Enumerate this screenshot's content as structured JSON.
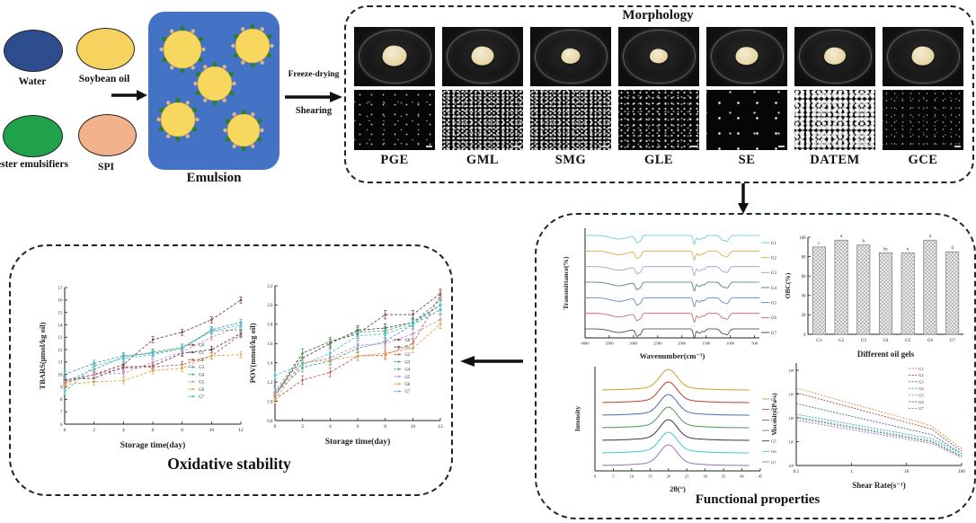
{
  "flow": {
    "ingredients": [
      {
        "label": "Water",
        "color": "#2e4d8e"
      },
      {
        "label": "Soybean oil",
        "color": "#f6d35f"
      },
      {
        "label": "ester emulsifiers",
        "color": "#1fa24a"
      },
      {
        "label": "SPI",
        "color": "#f2b38c"
      }
    ],
    "emulsion_label": "Emulsion",
    "emulsion_box_color": "#4472c4",
    "droplet_color": "#f8d75e",
    "process": {
      "top": "Freeze-drying",
      "bottom": "Shearing"
    }
  },
  "morphology": {
    "title": "Morphology",
    "samples": [
      {
        "label": "PGE",
        "micro": "sparse"
      },
      {
        "label": "GML",
        "micro": "dense"
      },
      {
        "label": "SMG",
        "micro": "dense"
      },
      {
        "label": "GLE",
        "micro": "medium"
      },
      {
        "label": "SE",
        "micro": "dots"
      },
      {
        "label": "DATEM",
        "micro": "coarse"
      },
      {
        "label": "GCE",
        "micro": "fine"
      }
    ]
  },
  "oxidative": {
    "title": "Oxidative stability"
  },
  "functional": {
    "title": "Functional properties"
  },
  "chart_data": [
    {
      "id": "tbars",
      "type": "line",
      "xlabel": "Storage time(day)",
      "ylabel": "TBARS(μmol/kg oil)",
      "x": [
        0,
        2,
        4,
        6,
        8,
        10,
        12
      ],
      "ylim": [
        6,
        17
      ],
      "yticks": [
        "6",
        "7",
        "8",
        "9",
        "10",
        "11",
        "12",
        "13",
        "14",
        "15",
        "16",
        "17"
      ],
      "err": 0.25,
      "legend_pos": {
        "x": 0.7,
        "y": 0.42
      },
      "series": [
        {
          "name": "G0",
          "color": "#7a3b44",
          "values": [
            9.5,
            10.0,
            10.8,
            12.8,
            13.4,
            14.4,
            16.0
          ]
        },
        {
          "name": "G1",
          "color": "#4a4a4a",
          "values": [
            9.6,
            9.7,
            10.6,
            10.7,
            11.7,
            12.0,
            13.3
          ]
        },
        {
          "name": "G2",
          "color": "#c65455",
          "values": [
            9.3,
            10.0,
            10.5,
            10.6,
            10.8,
            11.5,
            13.2
          ]
        },
        {
          "name": "G3",
          "color": "#3f9db5",
          "values": [
            10.0,
            10.9,
            11.5,
            11.7,
            12.1,
            13.6,
            14.2
          ]
        },
        {
          "name": "G4",
          "color": "#55a868",
          "values": [
            9.4,
            10.4,
            11.4,
            11.8,
            12.2,
            13.5,
            13.6
          ]
        },
        {
          "name": "G5",
          "color": "#c48fc4",
          "values": [
            9.4,
            10.0,
            10.1,
            11.0,
            11.8,
            13.0,
            13.9
          ]
        },
        {
          "name": "G6",
          "color": "#e0a33e",
          "values": [
            9.2,
            9.4,
            9.5,
            10.3,
            10.5,
            11.5,
            11.6
          ]
        },
        {
          "name": "G7",
          "color": "#4fc3d0",
          "values": [
            8.6,
            10.7,
            11.3,
            11.6,
            12.1,
            13.5,
            14.0
          ]
        }
      ]
    },
    {
      "id": "pov",
      "type": "line",
      "xlabel": "Storage time(day)",
      "ylabel": "POV(mmol/kg oil)",
      "x": [
        0,
        2,
        4,
        6,
        8,
        10,
        12
      ],
      "ylim": [
        0.8,
        2.2
      ],
      "yticks": [
        "0.8",
        "1.0",
        "1.2",
        "1.4",
        "1.6",
        "1.8",
        "2.0",
        "2.2"
      ],
      "err": 0.045,
      "legend_pos": {
        "x": 0.72,
        "y": 0.4
      },
      "series": [
        {
          "name": "G0",
          "color": "#7a3b44",
          "values": [
            1.05,
            1.5,
            1.62,
            1.7,
            1.9,
            1.9,
            2.12
          ]
        },
        {
          "name": "G1",
          "color": "#4a4a4a",
          "values": [
            1.08,
            1.45,
            1.6,
            1.74,
            1.76,
            1.82,
            2.0
          ]
        },
        {
          "name": "G2",
          "color": "#c65455",
          "values": [
            1.02,
            1.22,
            1.3,
            1.47,
            1.48,
            1.6,
            2.1
          ]
        },
        {
          "name": "G3",
          "color": "#3f9db5",
          "values": [
            1.08,
            1.35,
            1.42,
            1.55,
            1.62,
            1.8,
            1.95
          ]
        },
        {
          "name": "G4",
          "color": "#55a868",
          "values": [
            1.1,
            1.5,
            1.62,
            1.72,
            1.73,
            1.82,
            2.05
          ]
        },
        {
          "name": "G5",
          "color": "#c48fc4",
          "values": [
            1.08,
            1.4,
            1.45,
            1.58,
            1.6,
            1.7,
            1.85
          ]
        },
        {
          "name": "G6",
          "color": "#e0a33e",
          "values": [
            1.02,
            1.4,
            1.43,
            1.47,
            1.5,
            1.55,
            1.8
          ]
        },
        {
          "name": "G7",
          "color": "#4fc3d0",
          "values": [
            1.27,
            1.38,
            1.5,
            1.68,
            1.7,
            1.8,
            2.0
          ]
        }
      ]
    },
    {
      "id": "ftir",
      "type": "spectra",
      "xlabel": "Wavenumber(cm⁻¹)",
      "ylabel": "Transmittance(%)",
      "xticks": [
        4000,
        3500,
        3000,
        2500,
        2000,
        1500,
        1000,
        500
      ],
      "xrange": [
        4000,
        400
      ],
      "legend": [
        "G1",
        "G2",
        "G3",
        "G4",
        "G5",
        "G6",
        "G7"
      ],
      "colors": [
        "#5bc8d8",
        "#d4a73f",
        "#b08fc7",
        "#3a7d5a",
        "#4f7fc4",
        "#c45b5b",
        "#3a3a3a"
      ],
      "features": [
        {
          "c": 3300,
          "w": 170,
          "d": 4
        },
        {
          "c": 2925,
          "w": 35,
          "d": 8
        },
        {
          "c": 2855,
          "w": 25,
          "d": 5
        },
        {
          "c": 1745,
          "w": 22,
          "d": 10
        },
        {
          "c": 1640,
          "w": 40,
          "d": 5
        },
        {
          "c": 1540,
          "w": 30,
          "d": 3
        },
        {
          "c": 1160,
          "w": 45,
          "d": 5
        },
        {
          "c": 1065,
          "w": 40,
          "d": 6
        }
      ]
    },
    {
      "id": "obc",
      "type": "bar",
      "xlabel": "Different oil gels",
      "ylabel": "OBC(%)",
      "categories": [
        "G1",
        "G2",
        "G3",
        "G4",
        "G5",
        "G6",
        "G7"
      ],
      "values": [
        90,
        97,
        92,
        84,
        84,
        97,
        85
      ],
      "letters": [
        "c",
        "a",
        "b",
        "bc",
        "e",
        "a",
        "d"
      ],
      "ylim": [
        0,
        100
      ],
      "yticks": [
        "0",
        "20",
        "40",
        "60",
        "80",
        "100"
      ]
    },
    {
      "id": "xrd",
      "type": "peaks",
      "xlabel": "2θ(°)",
      "ylabel": "Intensity",
      "xticks": [
        0,
        5,
        10,
        15,
        20,
        25,
        30,
        35,
        40,
        45
      ],
      "xrange": [
        0,
        45
      ],
      "peak_center": 20,
      "legend": [
        "G1",
        "G2",
        "G3",
        "G4",
        "G5",
        "G6",
        "G7"
      ],
      "colors": [
        "#c8a227",
        "#c0392b",
        "#3f6fb5",
        "#4a9a5a",
        "#3a3a3a",
        "#3fc8c8",
        "#9a6fc0"
      ]
    },
    {
      "id": "viscosity",
      "type": "loglog",
      "xlabel": "Shear Rate(s⁻¹)",
      "ylabel": "Viscosity(Pa·s)",
      "xtick_labels": [
        "0.1",
        "1",
        "10",
        "100"
      ],
      "ytick_labels": [
        "10⁰",
        "10¹",
        "10²",
        "10³",
        "10⁴"
      ],
      "series": [
        {
          "name": "G1",
          "color": "#e09040",
          "start_exp": 3.25,
          "end_exp": 0.7
        },
        {
          "name": "G2",
          "color": "#b5483a",
          "start_exp": 3.05,
          "end_exp": 0.6
        },
        {
          "name": "G3",
          "color": "#3a6ea5",
          "start_exp": 2.6,
          "end_exp": 0.5
        },
        {
          "name": "G4",
          "color": "#3aa58a",
          "start_exp": 2.15,
          "end_exp": 0.5
        },
        {
          "name": "G5",
          "color": "#52c0b0",
          "start_exp": 2.05,
          "end_exp": 0.42
        },
        {
          "name": "G6",
          "color": "#6a6a6a",
          "start_exp": 2.0,
          "end_exp": 0.38
        },
        {
          "name": "G7",
          "color": "#9a6fc0",
          "start_exp": 1.9,
          "end_exp": 0.33
        }
      ]
    }
  ]
}
